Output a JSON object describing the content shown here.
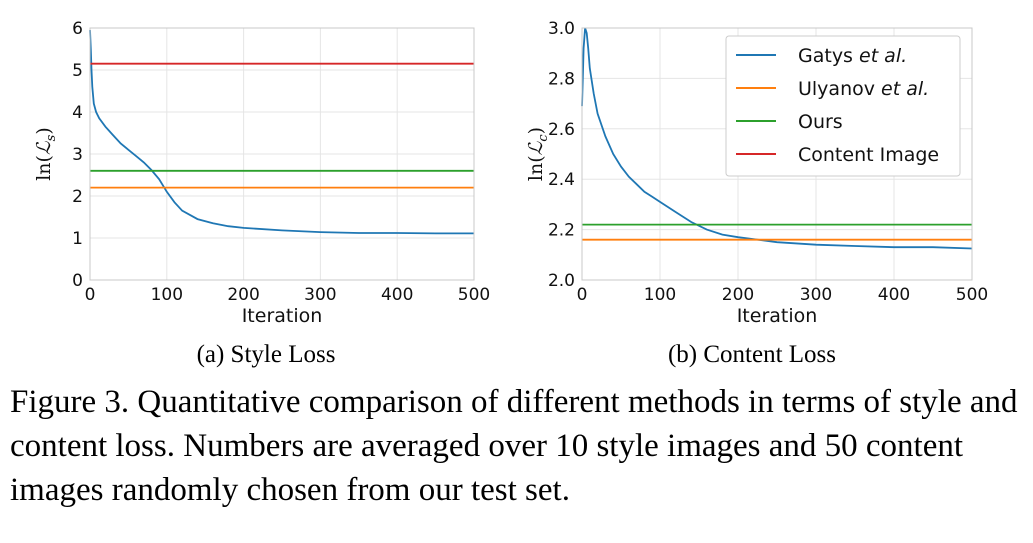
{
  "figure": {
    "caption": "Figure 3. Quantitative comparison of different methods in terms of style and content loss. Numbers are averaged over 10 style images and 50 content images randomly chosen from our test set."
  },
  "chart_data": [
    {
      "type": "line",
      "subcaption": "(a)  Style Loss",
      "xlabel": "Iteration",
      "ylabel_base": "ln(",
      "ylabel_symbol": "ℒ",
      "ylabel_sub": "s",
      "ylabel_close": ")",
      "xlim": [
        0,
        500
      ],
      "ylim": [
        0,
        6
      ],
      "xticks": [
        "0",
        "100",
        "200",
        "300",
        "400",
        "500"
      ],
      "yticks": [
        "0",
        "1",
        "2",
        "3",
        "4",
        "5",
        "6"
      ],
      "grid": true,
      "legend": null,
      "series": [
        {
          "name": "Gatys et al.",
          "color": "#1f77b4",
          "x": [
            0,
            1,
            2,
            3,
            5,
            8,
            12,
            20,
            30,
            40,
            50,
            60,
            70,
            80,
            90,
            100,
            110,
            120,
            140,
            160,
            180,
            200,
            250,
            300,
            350,
            400,
            450,
            500
          ],
          "y": [
            5.95,
            5.5,
            5.0,
            4.6,
            4.2,
            4.0,
            3.85,
            3.65,
            3.45,
            3.25,
            3.1,
            2.95,
            2.8,
            2.62,
            2.4,
            2.1,
            1.85,
            1.65,
            1.45,
            1.35,
            1.28,
            1.24,
            1.18,
            1.14,
            1.12,
            1.12,
            1.11,
            1.11
          ]
        },
        {
          "name": "Ulyanov et al.",
          "color": "#ff7f0e",
          "x": [
            0,
            500
          ],
          "y": [
            2.2,
            2.2
          ]
        },
        {
          "name": "Ours",
          "color": "#2ca02c",
          "x": [
            0,
            500
          ],
          "y": [
            2.6,
            2.6
          ]
        },
        {
          "name": "Content Image",
          "color": "#d62728",
          "x": [
            0,
            500
          ],
          "y": [
            5.15,
            5.15
          ]
        }
      ]
    },
    {
      "type": "line",
      "subcaption": "(b)  Content Loss",
      "xlabel": "Iteration",
      "ylabel_base": "ln(",
      "ylabel_symbol": "ℒ",
      "ylabel_sub": "c",
      "ylabel_close": ")",
      "xlim": [
        0,
        500
      ],
      "ylim": [
        2.0,
        3.0
      ],
      "xticks": [
        "0",
        "100",
        "200",
        "300",
        "400",
        "500"
      ],
      "yticks": [
        "2.0",
        "2.2",
        "2.4",
        "2.6",
        "2.8",
        "3.0"
      ],
      "grid": true,
      "legend": {
        "placement": "top-right",
        "entries": [
          {
            "prefix": "Gatys ",
            "italic": "et al.",
            "color": "#1f77b4"
          },
          {
            "prefix": "Ulyanov ",
            "italic": "et al.",
            "color": "#ff7f0e"
          },
          {
            "prefix": "Ours",
            "italic": "",
            "color": "#2ca02c"
          },
          {
            "prefix": "Content Image",
            "italic": "",
            "color": "#d62728"
          }
        ]
      },
      "series": [
        {
          "name": "Gatys et al.",
          "color": "#1f77b4",
          "x": [
            0,
            1,
            2,
            4,
            6,
            8,
            10,
            15,
            20,
            30,
            40,
            50,
            60,
            70,
            80,
            90,
            100,
            120,
            140,
            160,
            180,
            200,
            250,
            300,
            350,
            400,
            450,
            500
          ],
          "y": [
            2.69,
            2.8,
            2.92,
            3.0,
            2.98,
            2.92,
            2.84,
            2.74,
            2.66,
            2.57,
            2.5,
            2.45,
            2.41,
            2.38,
            2.35,
            2.33,
            2.31,
            2.27,
            2.23,
            2.2,
            2.18,
            2.17,
            2.15,
            2.14,
            2.135,
            2.13,
            2.13,
            2.125
          ]
        },
        {
          "name": "Ulyanov et al.",
          "color": "#ff7f0e",
          "x": [
            0,
            500
          ],
          "y": [
            2.16,
            2.16
          ]
        },
        {
          "name": "Ours",
          "color": "#2ca02c",
          "x": [
            0,
            500
          ],
          "y": [
            2.22,
            2.22
          ]
        },
        {
          "name": "Content Image",
          "color": "#d62728",
          "x": [
            0,
            500
          ],
          "y": [
            3.0,
            3.0
          ],
          "visible_in_plot": false
        }
      ]
    }
  ]
}
